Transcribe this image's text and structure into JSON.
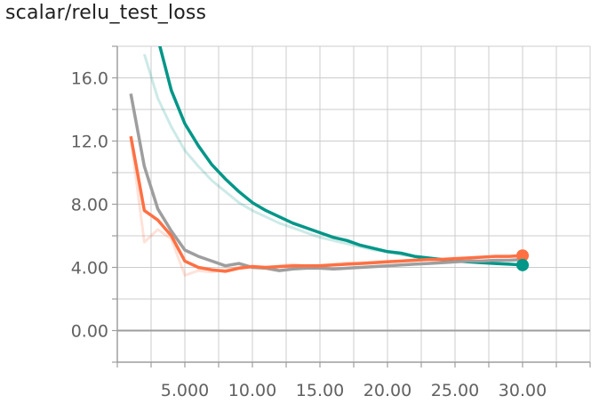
{
  "chart_data": {
    "type": "line",
    "title": "scalar/relu_test_loss",
    "xlim": [
      0,
      35
    ],
    "ylim": [
      -2,
      18
    ],
    "x_ticks": [
      5,
      10,
      15,
      20,
      25,
      30
    ],
    "x_tick_labels": [
      "5.000",
      "10.00",
      "15.00",
      "20.00",
      "25.00",
      "30.00"
    ],
    "y_ticks": [
      0,
      4,
      8,
      12,
      16
    ],
    "y_tick_labels": [
      "0.00",
      "4.00",
      "8.00",
      "12.0",
      "16.0"
    ],
    "grid": true,
    "series": [
      {
        "color": "#009688",
        "raw": {
          "x": [
            2,
            3,
            4,
            5,
            6,
            7,
            8,
            9,
            10,
            11,
            12,
            13,
            14,
            15,
            16,
            17,
            18,
            19,
            20,
            21,
            22,
            23,
            24,
            25,
            26,
            27,
            28,
            29,
            30
          ],
          "y": [
            17.5,
            14.7,
            12.9,
            11.4,
            10.4,
            9.5,
            8.8,
            8.1,
            7.6,
            7.2,
            6.8,
            6.5,
            6.2,
            5.9,
            5.7,
            5.5,
            5.3,
            5.1,
            5.0,
            4.8,
            4.7,
            4.6,
            4.5,
            4.4,
            4.35,
            4.3,
            4.25,
            4.2,
            4.15
          ]
        },
        "smoothed": {
          "x": [
            3,
            4,
            5,
            6,
            7,
            8,
            9,
            10,
            11,
            12,
            13,
            14,
            15,
            16,
            17,
            18,
            19,
            20,
            21,
            22,
            23,
            24,
            25,
            26,
            27,
            28,
            29,
            30
          ],
          "y": [
            18.5,
            15.2,
            13.1,
            11.7,
            10.5,
            9.6,
            8.8,
            8.1,
            7.6,
            7.2,
            6.8,
            6.5,
            6.2,
            5.9,
            5.7,
            5.4,
            5.2,
            5.0,
            4.9,
            4.7,
            4.6,
            4.5,
            4.4,
            4.35,
            4.3,
            4.25,
            4.2,
            4.15
          ]
        }
      },
      {
        "color": "#9e9e9e",
        "smoothed": {
          "x": [
            1,
            2,
            3,
            4,
            5,
            6,
            7,
            8,
            9,
            10,
            11,
            12,
            13,
            14,
            15,
            16,
            17,
            18,
            19,
            20,
            21,
            22,
            23,
            24,
            25,
            26,
            27,
            28,
            29,
            30
          ],
          "y": [
            15.0,
            10.4,
            7.7,
            6.3,
            5.1,
            4.7,
            4.4,
            4.1,
            4.25,
            4.0,
            3.95,
            3.8,
            3.9,
            3.95,
            3.95,
            3.9,
            3.95,
            4.0,
            4.05,
            4.1,
            4.15,
            4.2,
            4.25,
            4.3,
            4.35,
            4.4,
            4.4,
            4.45,
            4.45,
            4.5
          ]
        }
      },
      {
        "color": "#ff7043",
        "raw": {
          "x": [
            1,
            2,
            3,
            4,
            5,
            6,
            7,
            8,
            9,
            10,
            11,
            12,
            13,
            14,
            15,
            16,
            17,
            18,
            19,
            20,
            21,
            22,
            23,
            24,
            25,
            26,
            27,
            28,
            29,
            30
          ],
          "y": [
            12.2,
            5.6,
            6.4,
            5.8,
            3.5,
            3.8,
            3.7,
            3.9,
            4.0,
            4.1,
            4.0,
            4.1,
            4.2,
            4.1,
            4.15,
            4.2,
            4.3,
            4.3,
            4.35,
            4.4,
            4.4,
            4.5,
            4.5,
            4.55,
            4.6,
            4.6,
            4.65,
            4.7,
            4.7,
            4.75
          ]
        },
        "smoothed": {
          "x": [
            1,
            2,
            3,
            4,
            5,
            6,
            7,
            8,
            9,
            10,
            11,
            12,
            13,
            14,
            15,
            16,
            17,
            18,
            19,
            20,
            21,
            22,
            23,
            24,
            25,
            26,
            27,
            28,
            29,
            30
          ],
          "y": [
            12.3,
            7.6,
            7.0,
            6.0,
            4.4,
            4.0,
            3.85,
            3.75,
            3.95,
            4.05,
            4.0,
            4.05,
            4.1,
            4.1,
            4.1,
            4.15,
            4.2,
            4.25,
            4.3,
            4.35,
            4.4,
            4.45,
            4.5,
            4.5,
            4.55,
            4.6,
            4.65,
            4.7,
            4.7,
            4.75
          ]
        }
      }
    ]
  }
}
